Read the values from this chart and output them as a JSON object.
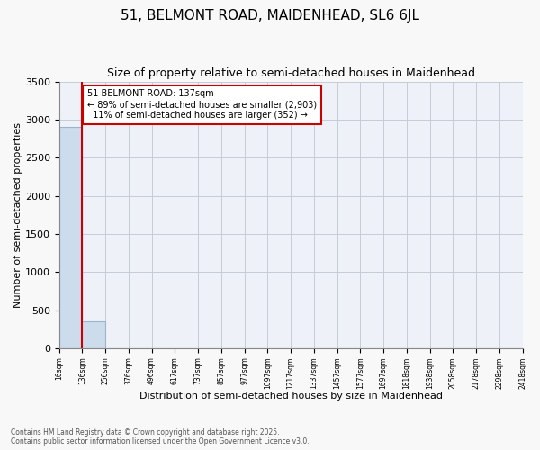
{
  "title": "51, BELMONT ROAD, MAIDENHEAD, SL6 6JL",
  "subtitle": "Size of property relative to semi-detached houses in Maidenhead",
  "xlabel": "Distribution of semi-detached houses by size in Maidenhead",
  "ylabel": "Number of semi-detached properties",
  "property_label": "51 BELMONT ROAD: 137sqm",
  "smaller_pct": 89,
  "smaller_count": 2903,
  "larger_pct": 11,
  "larger_count": 352,
  "bin_labels": [
    "16sqm",
    "136sqm",
    "256sqm",
    "376sqm",
    "496sqm",
    "617sqm",
    "737sqm",
    "857sqm",
    "977sqm",
    "1097sqm",
    "1217sqm",
    "1337sqm",
    "1457sqm",
    "1577sqm",
    "1697sqm",
    "1818sqm",
    "1938sqm",
    "2058sqm",
    "2178sqm",
    "2298sqm",
    "2418sqm"
  ],
  "bar_values": [
    2903,
    352,
    0,
    0,
    0,
    0,
    0,
    0,
    0,
    0,
    0,
    0,
    0,
    0,
    0,
    0,
    0,
    0,
    0,
    0
  ],
  "bar_color": "#ccdcec",
  "bar_edge_color": "#9ab4cc",
  "red_line_bin_idx": 1,
  "ylim": [
    0,
    3500
  ],
  "yticks": [
    0,
    500,
    1000,
    1500,
    2000,
    2500,
    3000,
    3500
  ],
  "footnote": "Contains HM Land Registry data © Crown copyright and database right 2025.\nContains public sector information licensed under the Open Government Licence v3.0.",
  "annotation_box_color": "#ffffff",
  "annotation_border_color": "#cc0000",
  "axes_bg_color": "#eef2f8",
  "fig_bg_color": "#f8f8f8"
}
